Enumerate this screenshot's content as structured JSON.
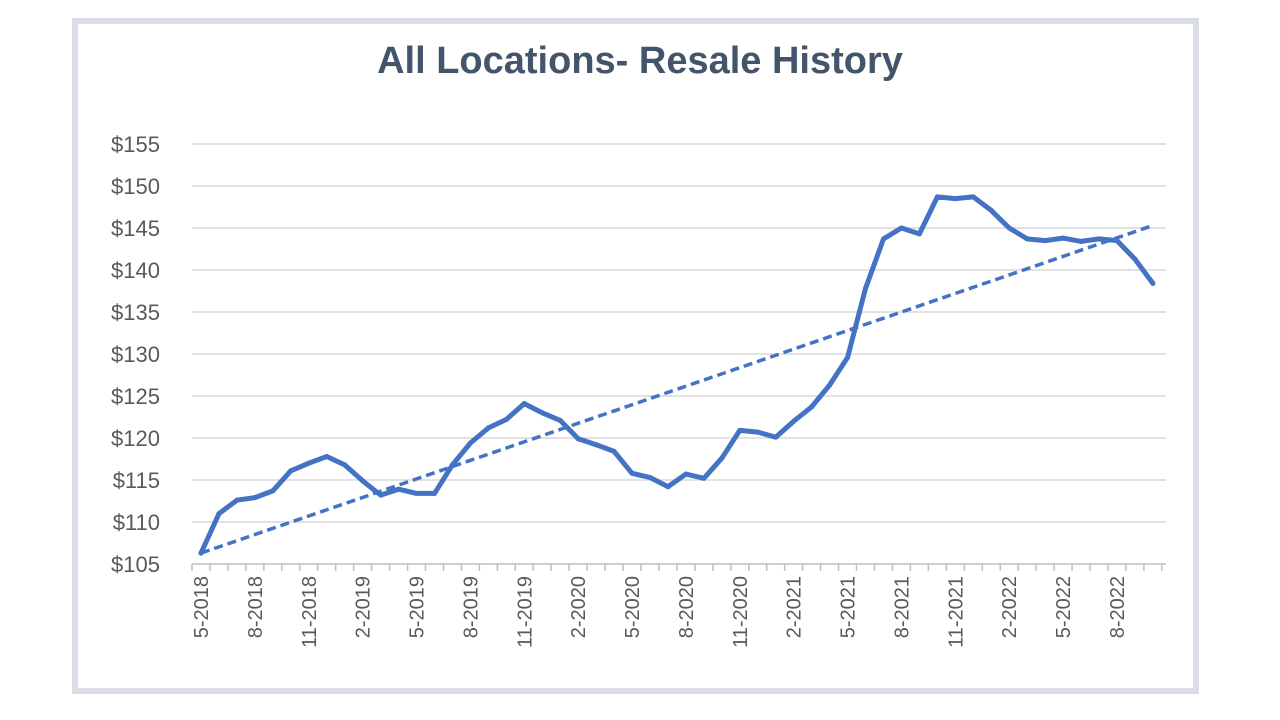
{
  "chart_data": {
    "type": "line",
    "title": "All Locations- Resale History",
    "xlabel": "",
    "ylabel": "",
    "ylim": [
      105,
      155
    ],
    "y_ticks": [
      105,
      110,
      115,
      120,
      125,
      130,
      135,
      140,
      145,
      150,
      155
    ],
    "y_tick_labels": [
      "$105",
      "$110",
      "$115",
      "$120",
      "$125",
      "$130",
      "$135",
      "$140",
      "$145",
      "$150",
      "$155"
    ],
    "x_tick_labels": [
      "5-2018",
      "8-2018",
      "11-2018",
      "2-2019",
      "5-2019",
      "8-2019",
      "11-2019",
      "2-2020",
      "5-2020",
      "8-2020",
      "11-2020",
      "2-2021",
      "5-2021",
      "8-2021",
      "11-2021",
      "2-2022",
      "5-2022",
      "8-2022"
    ],
    "x": [
      "5-2018",
      "6-2018",
      "7-2018",
      "8-2018",
      "9-2018",
      "10-2018",
      "11-2018",
      "12-2018",
      "1-2019",
      "2-2019",
      "3-2019",
      "4-2019",
      "5-2019",
      "6-2019",
      "7-2019",
      "8-2019",
      "9-2019",
      "10-2019",
      "11-2019",
      "12-2019",
      "1-2020",
      "2-2020",
      "3-2020",
      "4-2020",
      "5-2020",
      "6-2020",
      "7-2020",
      "8-2020",
      "9-2020",
      "10-2020",
      "11-2020",
      "12-2020",
      "1-2021",
      "2-2021",
      "3-2021",
      "4-2021",
      "5-2021",
      "6-2021",
      "7-2021",
      "8-2021",
      "9-2021",
      "10-2021",
      "11-2021",
      "12-2021",
      "1-2022",
      "2-2022",
      "3-2022",
      "4-2022",
      "5-2022",
      "6-2022",
      "7-2022",
      "8-2022",
      "9-2022",
      "10-2022"
    ],
    "series": [
      {
        "values": [
          106.3,
          111.0,
          112.6,
          112.9,
          113.7,
          116.1,
          117.0,
          117.8,
          116.8,
          114.9,
          113.2,
          113.9,
          113.4,
          113.4,
          116.8,
          119.4,
          121.2,
          122.2,
          124.1,
          123.0,
          122.1,
          119.9,
          119.2,
          118.4,
          115.8,
          115.3,
          114.2,
          115.7,
          115.2,
          117.6,
          120.9,
          120.7,
          120.1,
          122.0,
          123.7,
          126.3,
          129.6,
          137.8,
          143.7,
          145.0,
          144.3,
          148.7,
          148.5,
          148.7,
          147.1,
          145.0,
          143.7,
          143.5,
          143.8,
          143.4,
          143.7,
          143.5,
          141.3,
          138.4
        ],
        "color": "#4472c4"
      }
    ],
    "trendline": {
      "style": "dashed",
      "start": 106.3,
      "end": 145.3,
      "color": "#4472c4"
    },
    "grid": true,
    "legend": "none"
  }
}
